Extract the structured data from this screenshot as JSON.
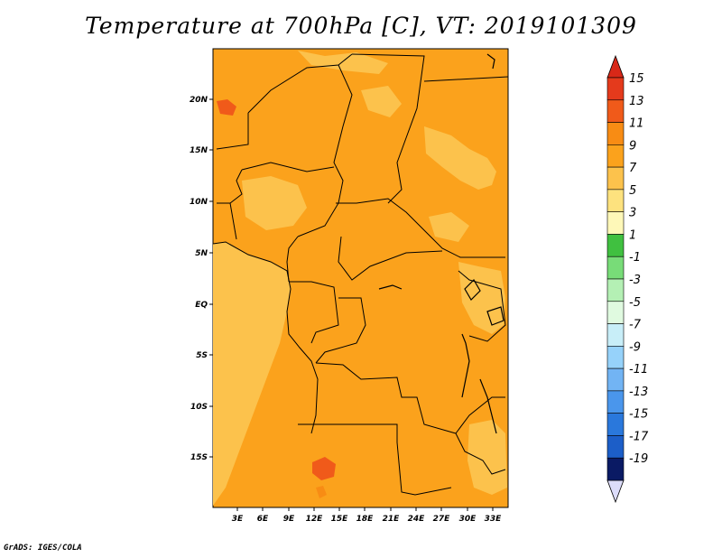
{
  "title": "Temperature at 700hPa [C], VT: 2019101309",
  "credit": "GrADS: IGES/COLA",
  "map": {
    "lat_ticks": [
      "20N",
      "15N",
      "10N",
      "5N",
      "EQ",
      "5S",
      "10S",
      "15S"
    ],
    "lon_ticks": [
      "3E",
      "6E",
      "9E",
      "12E",
      "15E",
      "18E",
      "21E",
      "24E",
      "27E",
      "30E",
      "33E"
    ]
  },
  "colorbar": {
    "levels": [
      {
        "label": "15",
        "color": "#e43a1c"
      },
      {
        "label": "13",
        "color": "#f05a1a"
      },
      {
        "label": "11",
        "color": "#f88c14"
      },
      {
        "label": "9",
        "color": "#fba21c"
      },
      {
        "label": "7",
        "color": "#fcc24c"
      },
      {
        "label": "5",
        "color": "#fde27e"
      },
      {
        "label": "3",
        "color": "#fef8b8"
      },
      {
        "label": "1",
        "color": "#40c040"
      },
      {
        "label": "-1",
        "color": "#78dc78"
      },
      {
        "label": "-3",
        "color": "#b4f0b4"
      },
      {
        "label": "-5",
        "color": "#e0fae0"
      },
      {
        "label": "-7",
        "color": "#c8eef8"
      },
      {
        "label": "-9",
        "color": "#96d2fa"
      },
      {
        "label": "-11",
        "color": "#72b4f4"
      },
      {
        "label": "-13",
        "color": "#4a96ec"
      },
      {
        "label": "-15",
        "color": "#2a78dc"
      },
      {
        "label": "-17",
        "color": "#1c5ec8"
      },
      {
        "label": "-19",
        "color": "#0e3c9c"
      }
    ],
    "top_arrow_color": "#d82818",
    "bottom_cap_color": "#0a1a64",
    "bottom_arrow_color": "#dcdcfa"
  }
}
